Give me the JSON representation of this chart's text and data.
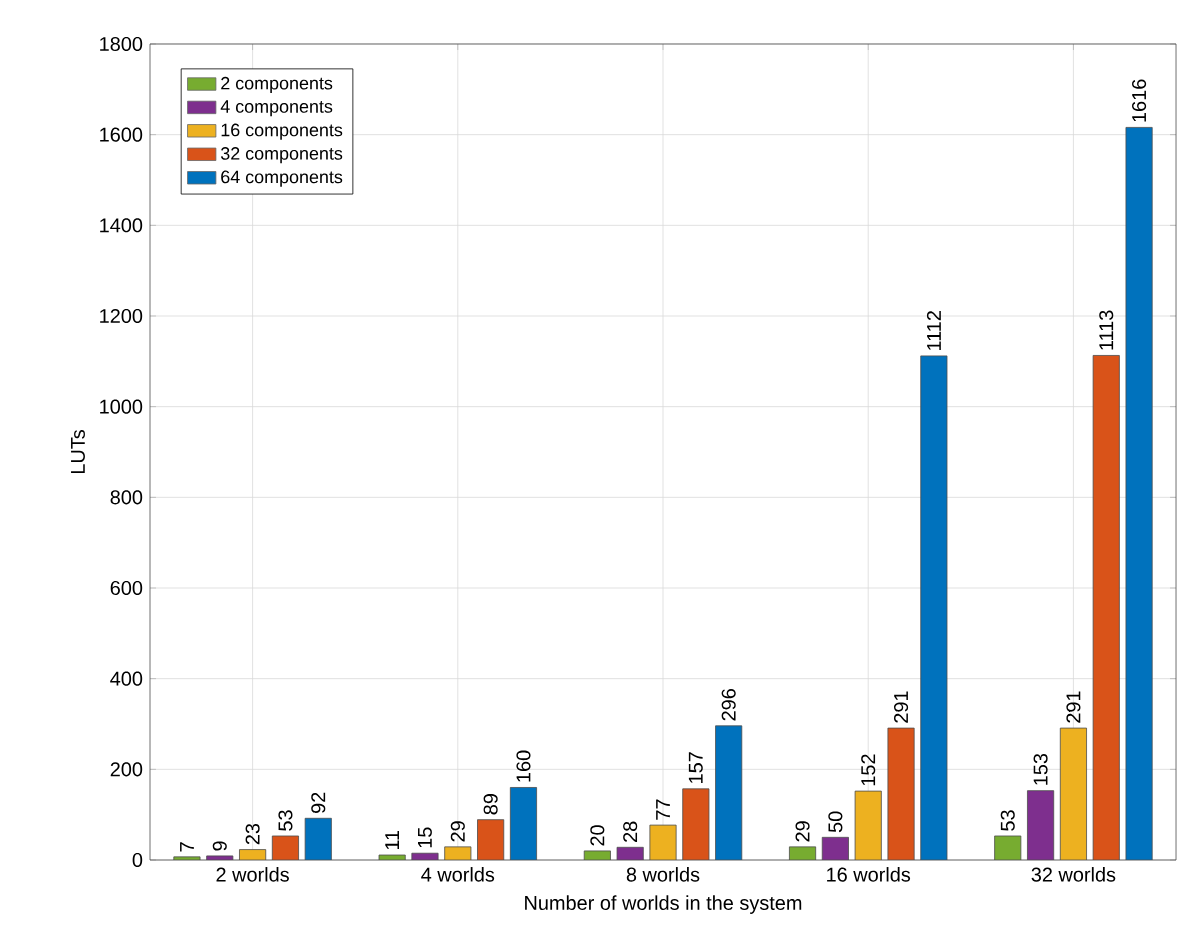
{
  "chart_data": {
    "type": "bar",
    "xlabel": "Number of worlds in the system",
    "ylabel": "LUTs",
    "categories": [
      "2 worlds",
      "4 worlds",
      "8 worlds",
      "16 worlds",
      "32 worlds"
    ],
    "series": [
      {
        "name": "2 components",
        "color": "#77ac30",
        "values": [
          7,
          11,
          20,
          29,
          53
        ]
      },
      {
        "name": "4 components",
        "color": "#7e2f8e",
        "values": [
          9,
          15,
          28,
          50,
          153
        ]
      },
      {
        "name": "16 components",
        "color": "#edb120",
        "values": [
          23,
          29,
          77,
          152,
          291
        ]
      },
      {
        "name": "32 components",
        "color": "#d95319",
        "values": [
          53,
          89,
          157,
          291,
          1113
        ]
      },
      {
        "name": "64 components",
        "color": "#0072bd",
        "values": [
          92,
          160,
          296,
          1112,
          1616
        ]
      }
    ],
    "ylim": [
      0,
      1800
    ],
    "yticks": [
      0,
      200,
      400,
      600,
      800,
      1000,
      1200,
      1400,
      1600,
      1800
    ],
    "grid": true,
    "legend": "top left",
    "data_labels": true
  }
}
